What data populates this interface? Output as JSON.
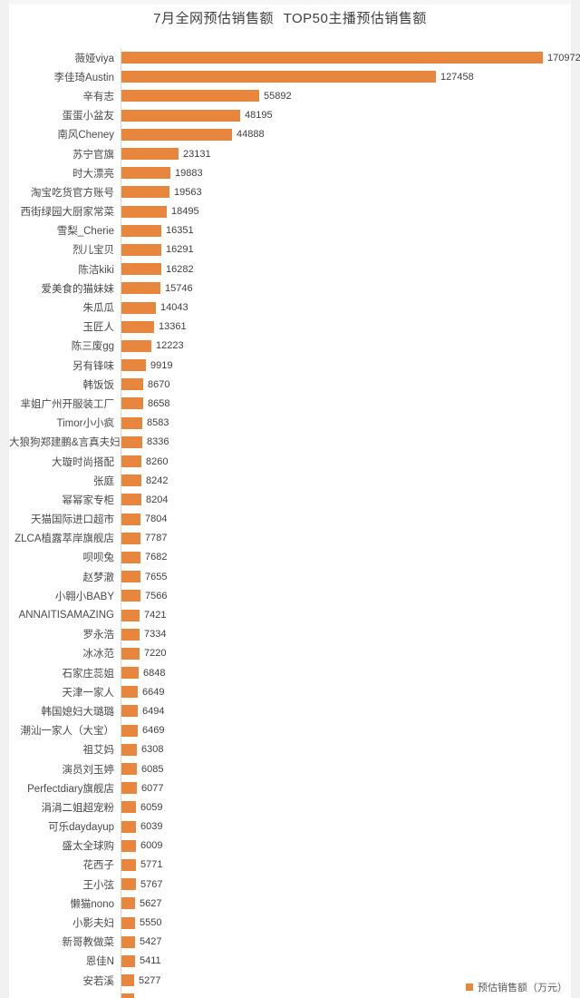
{
  "title": "7月全网预估销售额 TOP50主播预估销售额",
  "legend": {
    "label": "预估销售额（万元）"
  },
  "colors": {
    "bar": "#E8863D",
    "title_text": "#3F3F3F",
    "category_text": "#4A4A4A",
    "value_text": "#3F3F3F",
    "axis_line": "#D8D8D8",
    "background": "#FFFFFF"
  },
  "chart_data": {
    "type": "bar",
    "orientation": "horizontal",
    "title": "7月全网预估销售额 TOP50主播预估销售额",
    "xlabel": "",
    "ylabel": "",
    "unit": "万元",
    "xlim": [
      0,
      175000
    ],
    "grid": false,
    "legend_entries": [
      "预估销售额（万元）"
    ],
    "legend_position": "bottom-right",
    "sort_order": "descending",
    "clipped_last_row": true,
    "categories": [
      "薇娅viya",
      "李佳琦Austin",
      "辛有志",
      "蛋蛋小盆友",
      "南风Cheney",
      "苏宁官旗",
      "时大漂亮",
      "淘宝吃货官方账号",
      "西街绿园大厨家常菜",
      "雪梨_Cherie",
      "烈儿宝贝",
      "陈洁kiki",
      "爱美食的猫妹妹",
      "朱瓜瓜",
      "玉匠人",
      "陈三废gg",
      "另有锋味",
      "韩饭饭",
      "芈姐广州开服装工厂",
      "Timor小小疯",
      "大狼狗郑建鹏&言真夫妇",
      "大璇时尚搭配",
      "张庭",
      "幂幂家专柜",
      "天猫国际进口超市",
      "ZLCA植露萃岸旗舰店",
      "呗呗兔",
      "赵梦澈",
      "小翱小BABY",
      "ANNAITISAMAZING",
      "罗永浩",
      "冰冰范",
      "石家庄蕊姐",
      "天津一家人",
      "韩国媳妇大璐璐",
      "潮汕一家人（大宝）",
      "祖艾妈",
      "演员刘玉婷",
      "Perfectdiary旗舰店",
      "涓涓二姐超宠粉",
      "可乐daydayup",
      "盛太全球购",
      "花西子",
      "王小弦",
      "懒猫nono",
      "小影夫妇",
      "新哥教做菜",
      "恩佳N",
      "安若溪"
    ],
    "values": [
      170972,
      127458,
      55892,
      48195,
      44888,
      23131,
      19883,
      19563,
      18495,
      16351,
      16291,
      16282,
      15746,
      14043,
      13361,
      12223,
      9919,
      8670,
      8658,
      8583,
      8336,
      8260,
      8242,
      8204,
      7804,
      7787,
      7682,
      7655,
      7566,
      7421,
      7334,
      7220,
      6848,
      6649,
      6494,
      6469,
      6308,
      6085,
      6077,
      6059,
      6039,
      6009,
      5771,
      5767,
      5627,
      5550,
      5427,
      5411,
      5277
    ]
  }
}
